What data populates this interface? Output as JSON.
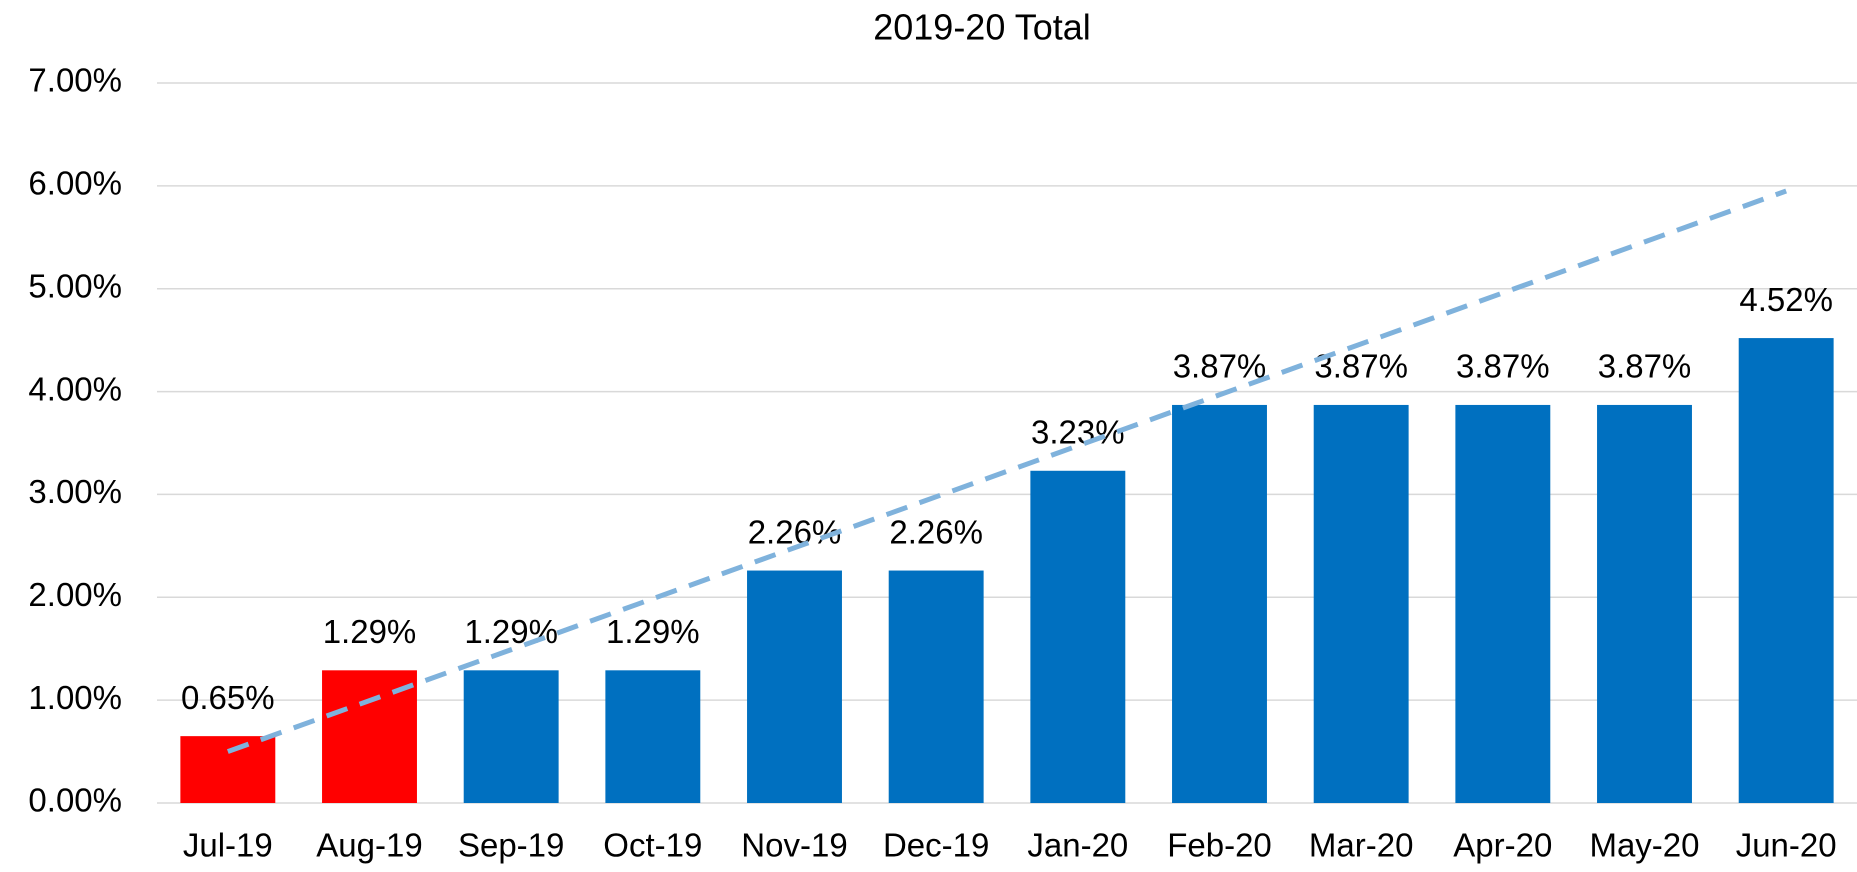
{
  "chart_data": {
    "type": "bar",
    "title": "2019-20 Total",
    "categories": [
      "Jul-19",
      "Aug-19",
      "Sep-19",
      "Oct-19",
      "Nov-19",
      "Dec-19",
      "Jan-20",
      "Feb-20",
      "Mar-20",
      "Apr-20",
      "May-20",
      "Jun-20"
    ],
    "values": [
      0.65,
      1.29,
      1.29,
      1.29,
      2.26,
      2.26,
      3.23,
      3.87,
      3.87,
      3.87,
      3.87,
      4.52
    ],
    "value_labels": [
      "0.65%",
      "1.29%",
      "1.29%",
      "1.29%",
      "2.26%",
      "2.26%",
      "3.23%",
      "3.87%",
      "3.87%",
      "3.87%",
      "3.87%",
      "4.52%"
    ],
    "colors": [
      "#ff0000",
      "#ff0000",
      "#0070c0",
      "#0070c0",
      "#0070c0",
      "#0070c0",
      "#0070c0",
      "#0070c0",
      "#0070c0",
      "#0070c0",
      "#0070c0",
      "#0070c0"
    ],
    "trendline": {
      "values": [
        0.5,
        5.95
      ],
      "color": "#7fb2dc",
      "dashed": true
    },
    "ylim": [
      0,
      7
    ],
    "yticks": [
      {
        "value": 0,
        "label": "0.00%"
      },
      {
        "value": 1,
        "label": "1.00%"
      },
      {
        "value": 2,
        "label": "2.00%"
      },
      {
        "value": 3,
        "label": "3.00%"
      },
      {
        "value": 4,
        "label": "4.00%"
      },
      {
        "value": 5,
        "label": "5.00%"
      },
      {
        "value": 6,
        "label": "6.00%"
      },
      {
        "value": 7,
        "label": "7.00%"
      }
    ],
    "grid": true
  }
}
